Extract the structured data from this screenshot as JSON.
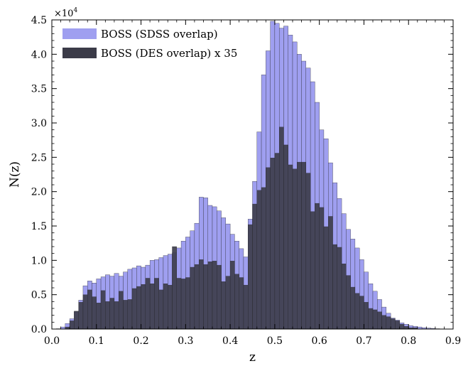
{
  "chart_data": {
    "type": "bar",
    "xlabel": "z",
    "ylabel": "N(z)",
    "xlim": [
      0.0,
      0.9
    ],
    "ylim": [
      0,
      45000
    ],
    "y_multiplier_label": "×10",
    "y_multiplier_exponent": "4",
    "bin_width": 0.01,
    "x_ticks": [
      "0.0",
      "0.1",
      "0.2",
      "0.3",
      "0.4",
      "0.5",
      "0.6",
      "0.7",
      "0.8",
      "0.9"
    ],
    "y_ticks": [
      "0.0",
      "0.5",
      "1.0",
      "1.5",
      "2.0",
      "2.5",
      "3.0",
      "3.5",
      "4.0",
      "4.5"
    ],
    "x_tick_values": [
      0.0,
      0.1,
      0.2,
      0.3,
      0.4,
      0.5,
      0.6,
      0.7,
      0.8,
      0.9
    ],
    "y_tick_values": [
      0,
      5000,
      10000,
      15000,
      20000,
      25000,
      30000,
      35000,
      40000,
      45000
    ],
    "grid": false,
    "legend_position": "top-left",
    "series": [
      {
        "name": "BOSS (SDSS overlap)",
        "color": "#9f9ff0",
        "x": [
          0.005,
          0.015,
          0.025,
          0.035,
          0.045,
          0.055,
          0.065,
          0.075,
          0.085,
          0.095,
          0.105,
          0.115,
          0.125,
          0.135,
          0.145,
          0.155,
          0.165,
          0.175,
          0.185,
          0.195,
          0.205,
          0.215,
          0.225,
          0.235,
          0.245,
          0.255,
          0.265,
          0.275,
          0.285,
          0.295,
          0.305,
          0.315,
          0.325,
          0.335,
          0.345,
          0.355,
          0.365,
          0.375,
          0.385,
          0.395,
          0.405,
          0.415,
          0.425,
          0.435,
          0.445,
          0.455,
          0.465,
          0.475,
          0.485,
          0.495,
          0.505,
          0.515,
          0.525,
          0.535,
          0.545,
          0.555,
          0.565,
          0.575,
          0.585,
          0.595,
          0.605,
          0.615,
          0.625,
          0.635,
          0.645,
          0.655,
          0.665,
          0.675,
          0.685,
          0.695,
          0.705,
          0.715,
          0.725,
          0.735,
          0.745,
          0.755,
          0.765,
          0.775,
          0.785,
          0.795,
          0.805,
          0.815,
          0.825,
          0.835,
          0.845,
          0.855,
          0.865,
          0.875,
          0.885,
          0.895
        ],
        "values": [
          0,
          50,
          300,
          800,
          1500,
          2500,
          4200,
          6300,
          7000,
          6700,
          7300,
          7600,
          7900,
          7700,
          8100,
          7700,
          8300,
          8700,
          8900,
          9200,
          9000,
          9300,
          10000,
          10100,
          10400,
          10700,
          10900,
          11100,
          11800,
          12800,
          13400,
          14300,
          15400,
          19200,
          19100,
          18000,
          17800,
          17200,
          16200,
          15300,
          13800,
          12800,
          11700,
          10500,
          16000,
          21500,
          28700,
          37000,
          40500,
          44800,
          44500,
          43800,
          44100,
          42800,
          41800,
          40000,
          39000,
          38000,
          36000,
          33000,
          29000,
          27700,
          24200,
          21300,
          19000,
          16800,
          14500,
          13100,
          11800,
          10100,
          8300,
          6600,
          5500,
          4300,
          3200,
          2300,
          1600,
          1300,
          900,
          700,
          500,
          400,
          300,
          200,
          150,
          100,
          50,
          30,
          20,
          10
        ]
      },
      {
        "name": "BOSS (DES overlap) x 35",
        "color": "#3b3b48",
        "x": [
          0.005,
          0.015,
          0.025,
          0.035,
          0.045,
          0.055,
          0.065,
          0.075,
          0.085,
          0.095,
          0.105,
          0.115,
          0.125,
          0.135,
          0.145,
          0.155,
          0.165,
          0.175,
          0.185,
          0.195,
          0.205,
          0.215,
          0.225,
          0.235,
          0.245,
          0.255,
          0.265,
          0.275,
          0.285,
          0.295,
          0.305,
          0.315,
          0.325,
          0.335,
          0.345,
          0.355,
          0.365,
          0.375,
          0.385,
          0.395,
          0.405,
          0.415,
          0.425,
          0.435,
          0.445,
          0.455,
          0.465,
          0.475,
          0.485,
          0.495,
          0.505,
          0.515,
          0.525,
          0.535,
          0.545,
          0.555,
          0.565,
          0.575,
          0.585,
          0.595,
          0.605,
          0.615,
          0.625,
          0.635,
          0.645,
          0.655,
          0.665,
          0.675,
          0.685,
          0.695,
          0.705,
          0.715,
          0.725,
          0.735,
          0.745,
          0.755,
          0.765,
          0.775,
          0.785,
          0.795,
          0.805,
          0.815,
          0.825,
          0.835,
          0.845,
          0.855,
          0.865,
          0.875,
          0.885,
          0.895
        ],
        "values": [
          0,
          0,
          0,
          300,
          1200,
          2600,
          3900,
          5000,
          5700,
          4700,
          3800,
          5600,
          4000,
          4500,
          4000,
          5500,
          4200,
          4300,
          5900,
          6200,
          6500,
          7400,
          6600,
          7400,
          5700,
          6600,
          6400,
          12000,
          7400,
          7300,
          7500,
          9000,
          9400,
          10100,
          9400,
          9800,
          9900,
          9300,
          6900,
          7700,
          9900,
          8000,
          7500,
          6400,
          15200,
          18200,
          20200,
          20600,
          23500,
          24900,
          25600,
          29400,
          26800,
          23900,
          23300,
          24300,
          24300,
          22700,
          17100,
          18300,
          17700,
          14900,
          16400,
          12300,
          11900,
          9500,
          7800,
          6100,
          5200,
          4800,
          3900,
          3000,
          2800,
          2500,
          2000,
          1800,
          1500,
          1200,
          700,
          400,
          200,
          200,
          0,
          0,
          0,
          0,
          0,
          0,
          0,
          0
        ]
      }
    ]
  }
}
